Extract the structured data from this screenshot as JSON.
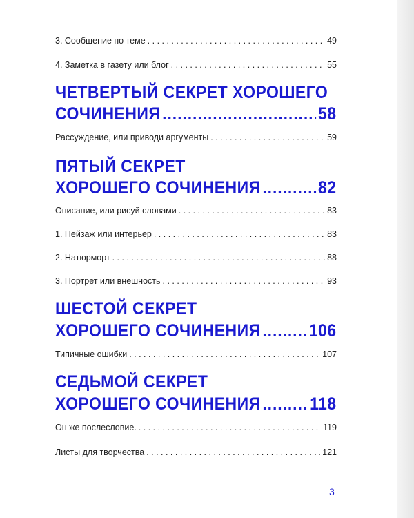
{
  "toc": [
    {
      "type": "entry",
      "title": "3. Сообщение по теме",
      "page": "49"
    },
    {
      "type": "entry",
      "title": "4. Заметка в газету или блог",
      "page": "55"
    },
    {
      "type": "heading",
      "line1": "ЧЕТВЕРТЫЙ СЕКРЕТ ХОРОШЕГО",
      "title": "СОЧИНЕНИЯ",
      "page": "58"
    },
    {
      "type": "entry",
      "title": "Рассуждение, или приводи аргументы",
      "page": "59"
    },
    {
      "type": "heading",
      "line1": "ПЯТЫЙ СЕКРЕТ",
      "title": "ХОРОШЕГО СОЧИНЕНИЯ",
      "page": "82"
    },
    {
      "type": "entry",
      "title": "Описание, или рисуй словами",
      "page": "83"
    },
    {
      "type": "entry",
      "title": "1. Пейзаж или интерьер",
      "page": "83"
    },
    {
      "type": "entry",
      "title": "2. Натюрморт",
      "page": "88"
    },
    {
      "type": "entry",
      "title": "3. Портрет или внешность",
      "page": "93"
    },
    {
      "type": "heading",
      "line1": "ШЕСТОЙ СЕКРЕТ",
      "title": "ХОРОШЕГО СОЧИНЕНИЯ",
      "page": "106"
    },
    {
      "type": "entry",
      "title": "Типичные ошибки",
      "page": "107"
    },
    {
      "type": "heading",
      "line1": "СЕДЬМОЙ СЕКРЕТ",
      "title": "ХОРОШЕГО СОЧИНЕНИЯ",
      "page": "118"
    },
    {
      "type": "entry",
      "title": "Он же послесловие.",
      "page": "119"
    },
    {
      "type": "entry",
      "title": "Листы для творчества",
      "page": "121"
    }
  ],
  "page_number": "3",
  "colors": {
    "accent": "#1a1ad0",
    "text": "#222222"
  }
}
